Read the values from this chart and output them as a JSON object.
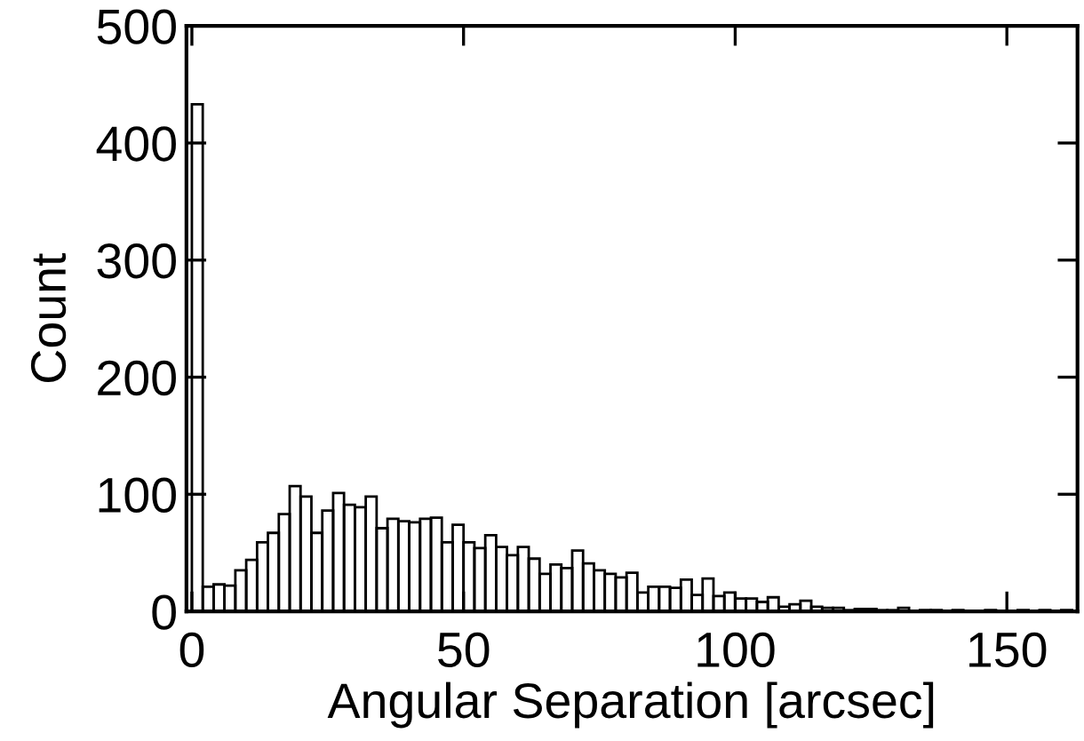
{
  "chart_data": {
    "type": "histogram",
    "xlabel": "Angular Separation [arcsec]",
    "ylabel": "Count",
    "bins": [
      0,
      2,
      4,
      6,
      8,
      10,
      12,
      14,
      16,
      18,
      20,
      22,
      24,
      26,
      28,
      30,
      32,
      34,
      36,
      38,
      40,
      42,
      44,
      46,
      48,
      50,
      52,
      54,
      56,
      58,
      60,
      62,
      64,
      66,
      68,
      70,
      72,
      74,
      76,
      78,
      80,
      82,
      84,
      86,
      88,
      90,
      92,
      94,
      96,
      98,
      100,
      102,
      104,
      106,
      108,
      110,
      112,
      114,
      116,
      118,
      120,
      122,
      124,
      126,
      128,
      130,
      132,
      134,
      136,
      138,
      140,
      142,
      144,
      146,
      148,
      150,
      152,
      154,
      156,
      158,
      160,
      162
    ],
    "values": [
      433,
      21,
      23,
      22,
      35,
      44,
      59,
      67,
      83,
      107,
      98,
      67,
      86,
      101,
      91,
      89,
      98,
      71,
      79,
      77,
      76,
      79,
      80,
      59,
      74,
      59,
      54,
      65,
      55,
      48,
      55,
      45,
      32,
      40,
      37,
      52,
      41,
      35,
      32,
      29,
      33,
      16,
      21,
      21,
      20,
      27,
      14,
      28,
      13,
      16,
      11,
      11,
      8,
      12,
      4,
      6,
      9,
      4,
      3,
      3,
      1,
      2,
      2,
      1,
      1,
      3,
      0,
      1,
      1,
      0,
      1,
      0,
      0,
      1,
      0,
      0,
      1,
      0,
      1,
      0,
      1
    ],
    "xlim": [
      -1,
      163
    ],
    "ylim": [
      0,
      500
    ],
    "xticks": [
      0,
      50,
      100,
      150
    ],
    "yticks": [
      0,
      100,
      200,
      300,
      400,
      500
    ],
    "grid": false
  }
}
